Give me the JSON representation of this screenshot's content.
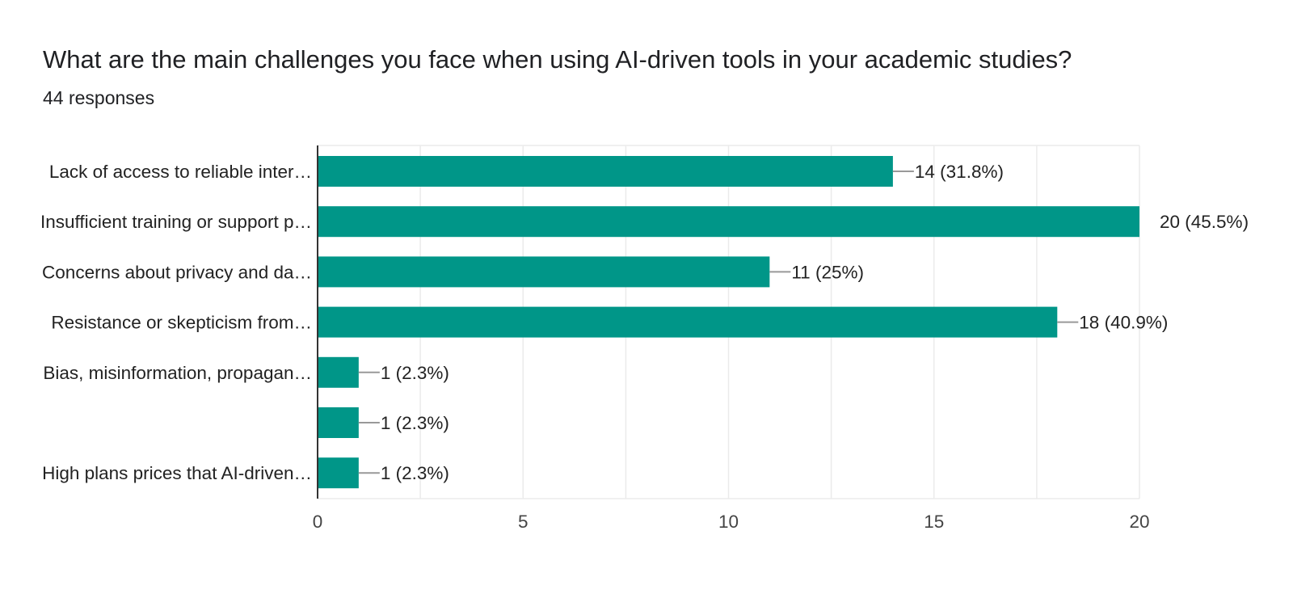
{
  "header": {
    "question": "What are the main challenges you face when using AI-driven tools in your academic studies?",
    "responses": "44 responses"
  },
  "colors": {
    "bar": "#009688",
    "grid": "#ebebeb",
    "axis": "#333333",
    "leader": "#999999"
  },
  "chart_data": {
    "type": "bar",
    "orientation": "horizontal",
    "title": "What are the main challenges you face when using AI-driven tools in your academic studies?",
    "subtitle": "44 responses",
    "categories": [
      "Lack of access to reliable inter…",
      "Insufficient training or support p…",
      "Concerns about privacy and da…",
      "Resistance or skepticism from…",
      "Bias, misinformation, propagan…",
      "",
      "High plans prices that AI-driven…"
    ],
    "values": [
      14,
      20,
      11,
      18,
      1,
      1,
      1
    ],
    "value_labels": [
      "14 (31.8%)",
      "20 (45.5%)",
      "11 (25%)",
      "18 (40.9%)",
      "1 (2.3%)",
      "1 (2.3%)",
      "1 (2.3%)"
    ],
    "xlim": [
      0,
      20
    ],
    "xticks": [
      0,
      5,
      10,
      15,
      20
    ],
    "grid": true,
    "legend": "none"
  }
}
